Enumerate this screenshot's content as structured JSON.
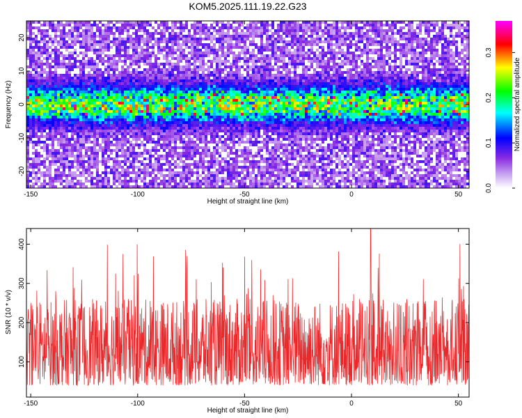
{
  "title": "KOM5.2025.111.19.22.G23",
  "chart_data": [
    {
      "type": "heatmap",
      "xlabel": "Height of straight line (km)",
      "ylabel": "Frequency (Hz)",
      "xlim": [
        -152,
        55
      ],
      "ylim": [
        -25,
        25
      ],
      "xticks": [
        -150,
        -100,
        -50,
        0,
        50
      ],
      "yticks": [
        -20,
        -10,
        0,
        10,
        20
      ],
      "description": "Band of high normalized spectral amplitude concentrated around 0 Hz (about -5 to +5 Hz) across all heights; weak purple background elsewhere.",
      "band_center_hz": 0,
      "band_halfwidth_hz": 5,
      "colorbar": {
        "label": "Normalized spectral amplitude",
        "range": [
          0.0,
          0.37
        ],
        "ticks": [
          0.0,
          0.1,
          0.2,
          0.3
        ],
        "colors": [
          "#ffffff",
          "#8a2be2",
          "#0000ff",
          "#00ffff",
          "#00ff00",
          "#ffff00",
          "#ff0000",
          "#ff00ff"
        ]
      }
    },
    {
      "type": "line",
      "xlabel": "Height of straight line (km)",
      "ylabel": "SNR (10 * v/v)",
      "xlim": [
        -152,
        55
      ],
      "ylim": [
        10,
        440
      ],
      "xticks": [
        -150,
        -100,
        -50,
        0,
        50
      ],
      "yticks": [
        100,
        200,
        300,
        400
      ],
      "color": "#e8282a",
      "summary": {
        "baseline_mean": 120,
        "typical_min": 40,
        "typical_max": 260,
        "peak_x": 9,
        "peak_y": 440
      }
    }
  ]
}
